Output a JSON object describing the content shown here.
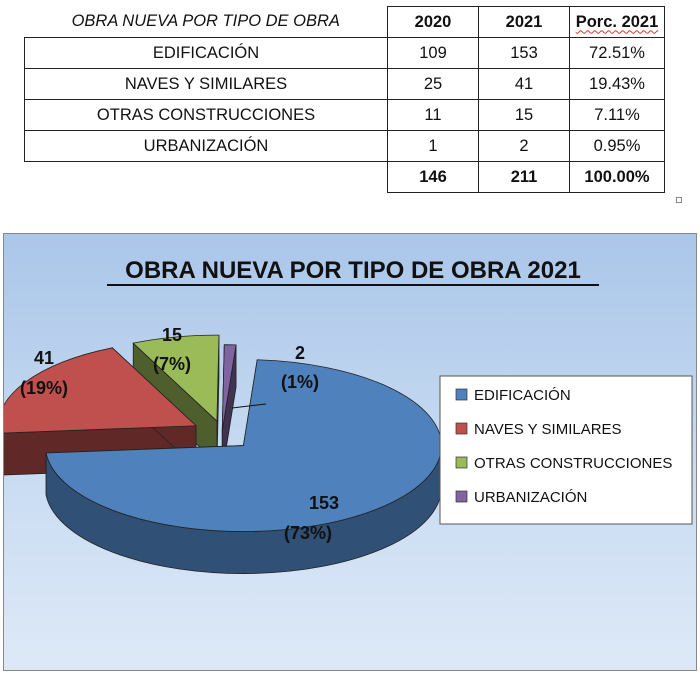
{
  "table": {
    "title": "OBRA NUEVA POR TIPO DE OBRA",
    "headers": [
      "2020",
      "2021",
      "Porc. 2021"
    ],
    "rows": [
      {
        "label": "EDIFICACIÓN",
        "v2020": "109",
        "v2021": "153",
        "pct": "72.51%"
      },
      {
        "label": "NAVES Y SIMILARES",
        "v2020": "25",
        "v2021": "41",
        "pct": "19.43%"
      },
      {
        "label": "OTRAS CONSTRUCCIONES",
        "v2020": "11",
        "v2021": "15",
        "pct": "7.11%"
      },
      {
        "label": "URBANIZACIÓN",
        "v2020": "1",
        "v2021": "2",
        "pct": "0.95%"
      }
    ],
    "totals": {
      "v2020": "146",
      "v2021": "211",
      "pct": "100.00%"
    }
  },
  "chart_data": {
    "type": "pie",
    "title": "OBRA NUEVA POR TIPO DE OBRA 2021",
    "categories": [
      "EDIFICACIÓN",
      "NAVES Y SIMILARES",
      "OTRAS CONSTRUCCIONES",
      "URBANIZACIÓN"
    ],
    "values": [
      153,
      41,
      15,
      2
    ],
    "percent_labels": [
      "(73%)",
      "(19%)",
      "(7%)",
      "(1%)"
    ],
    "colors": [
      "#4f81bd",
      "#c0504d",
      "#9bbb59",
      "#8064a2"
    ],
    "legend_position": "right",
    "style": "3d-exploded"
  }
}
